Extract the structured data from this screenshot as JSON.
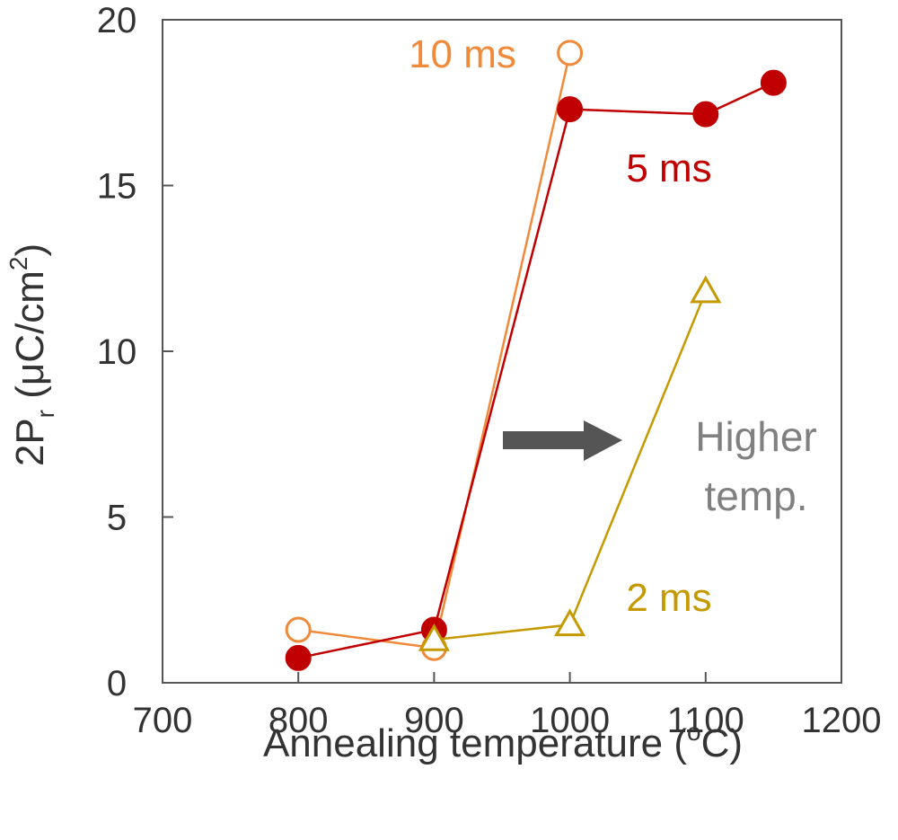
{
  "chart_data": {
    "type": "line",
    "xlabel": {
      "main": "Annealing temperature (",
      "sup": "o",
      "tail": "C)"
    },
    "ylabel": {
      "main": "2P",
      "sub": "r",
      "mid": " (μC/cm",
      "sup": "2",
      "tail": ")"
    },
    "xlim": [
      700,
      1200
    ],
    "ylim": [
      0,
      20
    ],
    "xticks": [
      "700",
      "800",
      "900",
      "1000",
      "1100",
      "1200"
    ],
    "yticks": [
      "0",
      "5",
      "10",
      "15",
      "20"
    ],
    "grid": false,
    "series": [
      {
        "name": "10 ms",
        "color": "#ef8a3a",
        "marker": "open-circle",
        "x": [
          800,
          900,
          1000
        ],
        "y": [
          1.6,
          1.05,
          19.0
        ]
      },
      {
        "name": "5 ms",
        "color": "#c00000",
        "marker": "filled-circle",
        "x": [
          800,
          900,
          1000,
          1100,
          1150
        ],
        "y": [
          0.75,
          1.6,
          17.3,
          17.15,
          18.1
        ]
      },
      {
        "name": "2 ms",
        "color": "#c49a00",
        "marker": "open-triangle",
        "x": [
          900,
          1000,
          1100
        ],
        "y": [
          1.3,
          1.75,
          11.8
        ]
      }
    ],
    "annotations": [
      {
        "text_lines": [
          "Higher",
          "temp."
        ],
        "color": "#808080",
        "arrow": "right",
        "arrow_color": "#555555"
      }
    ]
  }
}
